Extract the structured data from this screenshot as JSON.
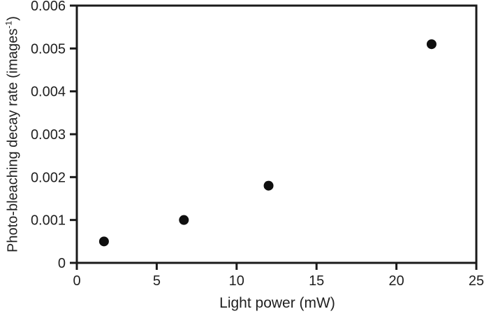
{
  "figure": {
    "background": "#ffffff"
  },
  "chart_data": {
    "type": "scatter",
    "title": "",
    "xlabel": "Light power (mW)",
    "ylabel": "Photo-bleaching decay rate (images⁻¹)",
    "ylabel_parts": {
      "main": "Photo-bleaching decay rate (images",
      "sup": "-1",
      "end": ")"
    },
    "xlim": [
      0,
      25
    ],
    "ylim": [
      0,
      0.006
    ],
    "xticks": [
      0,
      5,
      10,
      15,
      20,
      25
    ],
    "xtick_labels": [
      "0",
      "5",
      "10",
      "15",
      "20",
      "25"
    ],
    "yticks": [
      0,
      0.001,
      0.002,
      0.003,
      0.004,
      0.005,
      0.006
    ],
    "ytick_labels": [
      "0",
      "0.001",
      "0.002",
      "0.003",
      "0.004",
      "0.005",
      "0.006"
    ],
    "points": [
      {
        "x": 1.7,
        "y": 0.0005
      },
      {
        "x": 6.7,
        "y": 0.001
      },
      {
        "x": 12,
        "y": 0.0018
      },
      {
        "x": 22.2,
        "y": 0.0051
      }
    ],
    "grid": false,
    "legend": null,
    "frame": "full-box",
    "marker": {
      "shape": "filled-circle",
      "color": "#0f0f0f",
      "radius_px": 7
    },
    "colors": {
      "axis": "#1a1a1a",
      "text": "#1f1f1f"
    }
  }
}
